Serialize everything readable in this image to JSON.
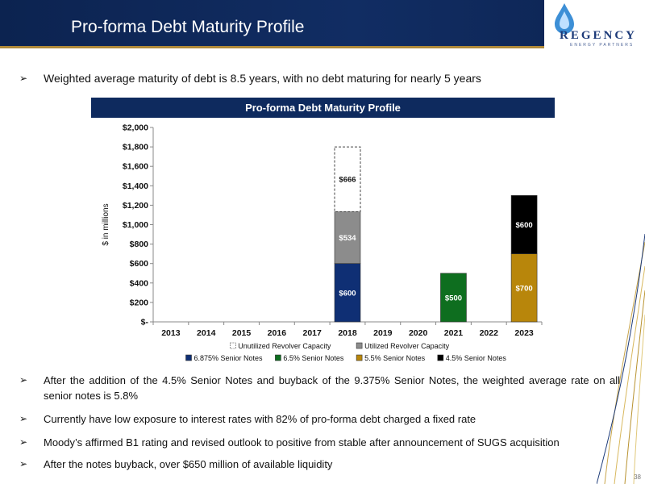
{
  "slide": {
    "title": "Pro-forma Debt Maturity Profile",
    "page_number": "38",
    "logo_text": "REGENCY",
    "logo_subtext": "ENERGY PARTNERS"
  },
  "bullets": {
    "top": "Weighted average maturity of debt is 8.5 years, with no debt maturing for nearly 5 years",
    "items": [
      "After the addition of the 4.5% Senior Notes and buyback of the 9.375% Senior Notes, the weighted average rate on all senior notes is 5.8%",
      "Currently have low exposure to interest rates with 82% of pro-forma debt charged a fixed rate",
      "Moody’s affirmed B1 rating and revised outlook to positive from stable after announcement of SUGS acquisition",
      "After the notes buyback, over $650 million of available liquidity"
    ]
  },
  "chart_data": {
    "type": "bar",
    "stacked": true,
    "title": "Pro-forma Debt Maturity Profile",
    "ylabel": "$ in millions",
    "xlabel": "",
    "ylim": [
      0,
      2000
    ],
    "yticks": [
      0,
      200,
      400,
      600,
      800,
      1000,
      1200,
      1400,
      1600,
      1800,
      2000
    ],
    "ytick_labels": [
      "$-",
      "$200",
      "$400",
      "$600",
      "$800",
      "$1,000",
      "$1,200",
      "$1,400",
      "$1,600",
      "$1,800",
      "$2,000"
    ],
    "categories": [
      "2013",
      "2014",
      "2015",
      "2016",
      "2017",
      "2018",
      "2019",
      "2020",
      "2021",
      "2022",
      "2023"
    ],
    "grid": false,
    "legend_position": "bottom",
    "series": [
      {
        "name": "6.875% Senior Notes",
        "color": "#0f2f74",
        "values": [
          0,
          0,
          0,
          0,
          0,
          600,
          0,
          0,
          0,
          0,
          0
        ],
        "labels": [
          "",
          "",
          "",
          "",
          "",
          "$600",
          "",
          "",
          "",
          "",
          ""
        ]
      },
      {
        "name": "Utilized Revolver Capacity",
        "color": "#8c8c8c",
        "values": [
          0,
          0,
          0,
          0,
          0,
          534,
          0,
          0,
          0,
          0,
          0
        ],
        "labels": [
          "",
          "",
          "",
          "",
          "",
          "$534",
          "",
          "",
          "",
          "",
          ""
        ]
      },
      {
        "name": "Unutilized Revolver Capacity",
        "color": "#ffffff",
        "style": "dashed",
        "values": [
          0,
          0,
          0,
          0,
          0,
          666,
          0,
          0,
          0,
          0,
          0
        ],
        "labels": [
          "",
          "",
          "",
          "",
          "",
          "$666",
          "",
          "",
          "",
          "",
          ""
        ]
      },
      {
        "name": "6.5% Senior Notes",
        "color": "#0e6e1f",
        "values": [
          0,
          0,
          0,
          0,
          0,
          0,
          0,
          0,
          500,
          0,
          0
        ],
        "labels": [
          "",
          "",
          "",
          "",
          "",
          "",
          "",
          "",
          "$500",
          "",
          ""
        ]
      },
      {
        "name": "5.5% Senior Notes",
        "color": "#b8860b",
        "values": [
          0,
          0,
          0,
          0,
          0,
          0,
          0,
          0,
          0,
          0,
          700
        ],
        "labels": [
          "",
          "",
          "",
          "",
          "",
          "",
          "",
          "",
          "",
          "",
          "$700"
        ]
      },
      {
        "name": "4.5% Senior Notes",
        "color": "#000000",
        "values": [
          0,
          0,
          0,
          0,
          0,
          0,
          0,
          0,
          0,
          0,
          600
        ],
        "labels": [
          "",
          "",
          "",
          "",
          "",
          "",
          "",
          "",
          "",
          "",
          "$600"
        ]
      }
    ],
    "legend_rows": [
      [
        "Unutilized Revolver Capacity",
        "Utilized Revolver Capacity"
      ],
      [
        "6.875% Senior Notes",
        "6.5% Senior Notes",
        "5.5% Senior Notes",
        "4.5% Senior Notes"
      ]
    ]
  }
}
